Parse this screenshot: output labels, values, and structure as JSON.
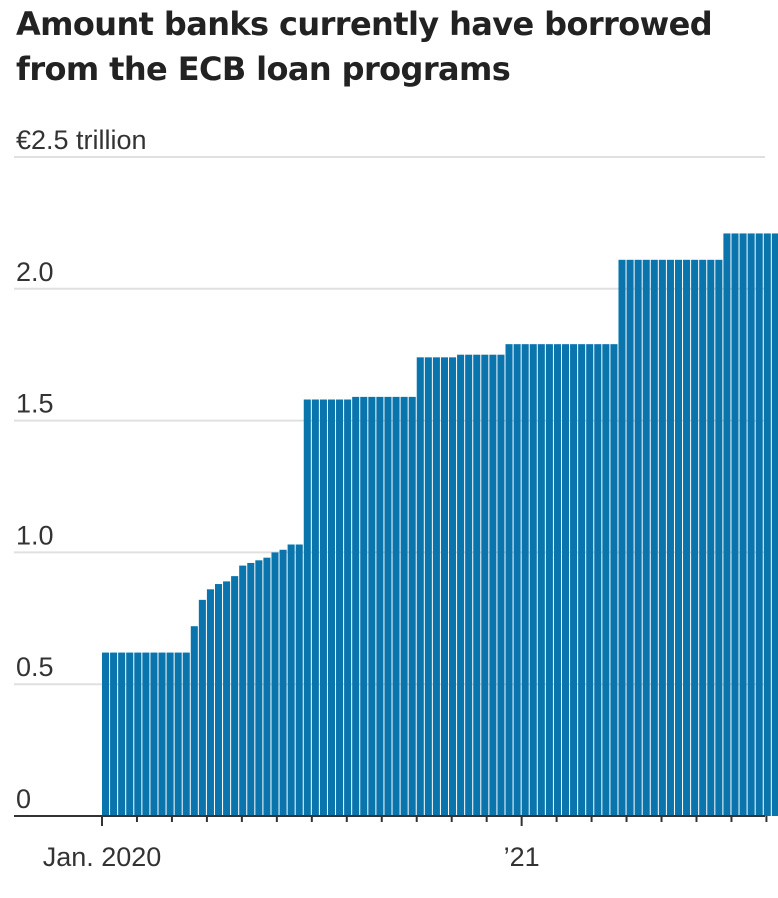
{
  "title": "Amount banks currently have borrowed from the ECB loan programs",
  "colors": {
    "bar": "#0a75ad",
    "grid": "#e0e0e0",
    "axis": "#333333"
  },
  "chart_data": {
    "type": "bar",
    "title": "Amount banks currently have borrowed from the ECB loan programs",
    "unit_label": "€2.5 trillion",
    "ylim": [
      0,
      2.5
    ],
    "yticks": [
      0,
      0.5,
      1.0,
      1.5,
      2.0,
      2.5
    ],
    "ytick_labels": [
      "0",
      "0.5",
      "1.0",
      "1.5",
      "2.0",
      "€2.5 trillion"
    ],
    "xtick_labels": [
      {
        "label": "Jan. 2020",
        "week": 0
      },
      {
        "label": "’21",
        "week": 52
      }
    ],
    "grid": true,
    "series": [
      {
        "values": [
          0.62,
          0.62,
          0.62,
          0.62,
          0.62,
          0.62,
          0.62,
          0.62,
          0.62,
          0.62,
          0.62,
          0.72,
          0.82,
          0.86,
          0.88,
          0.89,
          0.91,
          0.95,
          0.96,
          0.97,
          0.98,
          1.0,
          1.01,
          1.03,
          1.03,
          1.58,
          1.58,
          1.58,
          1.58,
          1.58,
          1.58,
          1.59,
          1.59,
          1.59,
          1.59,
          1.59,
          1.59,
          1.59,
          1.59,
          1.74,
          1.74,
          1.74,
          1.74,
          1.74,
          1.75,
          1.75,
          1.75,
          1.75,
          1.75,
          1.75,
          1.79,
          1.79,
          1.79,
          1.79,
          1.79,
          1.79,
          1.79,
          1.79,
          1.79,
          1.79,
          1.79,
          1.79,
          1.79,
          1.79,
          2.11,
          2.11,
          2.11,
          2.11,
          2.11,
          2.11,
          2.11,
          2.11,
          2.11,
          2.11,
          2.11,
          2.11,
          2.11,
          2.21,
          2.21,
          2.21,
          2.21,
          2.21,
          2.21,
          2.21,
          2.21,
          2.21
        ]
      }
    ]
  }
}
